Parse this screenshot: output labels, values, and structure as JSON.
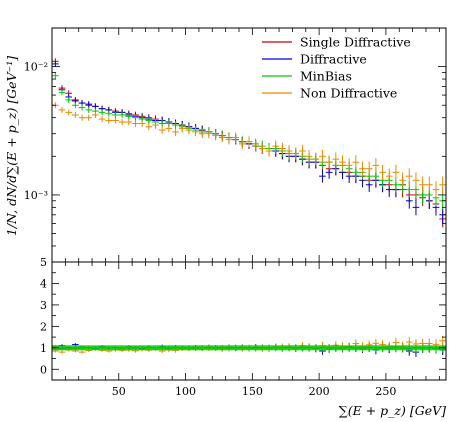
{
  "chart_data": {
    "type": "scatter",
    "xlabel": "∑(E + p_z) [GeV]",
    "ylabel": "1/N, dN/d∑(E + p_z) [GeV⁻¹]",
    "xlim": [
      0,
      295
    ],
    "ylim": [
      0.0003,
      0.02
    ],
    "yscale": "log",
    "ylim_ratio": [
      -0.5,
      5
    ],
    "bin_width": 5,
    "grid": false,
    "legend_position": "top-right",
    "x_ticks": [
      50,
      100,
      150,
      200,
      250
    ],
    "y_ticks": [
      {
        "value": 0.01,
        "label": "10⁻²"
      },
      {
        "value": 0.001,
        "label": "10⁻³"
      }
    ],
    "ratio_ticks": [
      0,
      1,
      2,
      3,
      4,
      5
    ],
    "x": [
      2.5,
      7.5,
      12.5,
      17.5,
      22.5,
      27.5,
      32.5,
      37.5,
      42.5,
      47.5,
      52.5,
      57.5,
      62.5,
      67.5,
      72.5,
      77.5,
      82.5,
      87.5,
      92.5,
      97.5,
      102.5,
      107.5,
      112.5,
      117.5,
      122.5,
      127.5,
      132.5,
      137.5,
      142.5,
      147.5,
      152.5,
      157.5,
      162.5,
      167.5,
      172.5,
      177.5,
      182.5,
      187.5,
      192.5,
      197.5,
      202.5,
      207.5,
      212.5,
      217.5,
      222.5,
      227.5,
      232.5,
      237.5,
      242.5,
      247.5,
      252.5,
      257.5,
      262.5,
      267.5,
      272.5,
      277.5,
      282.5,
      287.5,
      292.5
    ],
    "series": [
      {
        "name": "Single Diffractive",
        "color": "#cc0000",
        "values": [
          0.011,
          0.0068,
          0.0062,
          0.0055,
          0.0052,
          0.005,
          0.0049,
          0.0047,
          0.0046,
          0.0045,
          0.0044,
          0.0043,
          0.0042,
          0.0041,
          0.004,
          0.0039,
          0.0038,
          0.0037,
          0.0036,
          0.0035,
          0.0034,
          0.0033,
          0.0032,
          0.0031,
          0.003,
          0.0029,
          0.0028,
          0.0027,
          0.0026,
          0.0025,
          0.0024,
          0.0023,
          0.0022,
          0.0022,
          0.0021,
          0.002,
          0.002,
          0.0019,
          0.0018,
          0.0018,
          0.0017,
          0.0016,
          0.0016,
          0.0015,
          0.0015,
          0.0014,
          0.0014,
          0.0013,
          0.0013,
          0.0012,
          0.0012,
          0.0011,
          0.0011,
          0.001,
          0.001,
          0.00095,
          0.0009,
          0.00085,
          0.00065
        ],
        "ratio": [
          1.0,
          0.95,
          1.02,
          0.98,
          1.03,
          1.0,
          0.97,
          1.02,
          0.99,
          1.01,
          0.98,
          1.03,
          1.0,
          0.97,
          1.02,
          0.99,
          1.01,
          0.98,
          1.02,
          1.0,
          0.99,
          1.01,
          0.98,
          1.02,
          1.0,
          0.97,
          1.02,
          0.99,
          1.01,
          0.98,
          1.02,
          1.0,
          0.97,
          1.03,
          0.99,
          1.01,
          0.98,
          1.02,
          1.0,
          0.97,
          1.02,
          0.99,
          1.01,
          0.98,
          1.03,
          1.0,
          0.96,
          1.02,
          0.99,
          1.01,
          0.97,
          1.03,
          1.0,
          0.96,
          1.02,
          0.99,
          1.01,
          0.97,
          0.9
        ]
      },
      {
        "name": "Diffractive",
        "color": "#0000dd",
        "values": [
          0.0105,
          0.0066,
          0.0058,
          0.0054,
          0.0052,
          0.0051,
          0.0049,
          0.0047,
          0.0046,
          0.0044,
          0.0044,
          0.0042,
          0.0041,
          0.004,
          0.0039,
          0.0038,
          0.0038,
          0.0037,
          0.0036,
          0.0035,
          0.0034,
          0.0033,
          0.0032,
          0.0031,
          0.003,
          0.0029,
          0.0028,
          0.0027,
          0.0026,
          0.0025,
          0.0024,
          0.0023,
          0.0023,
          0.0022,
          0.0021,
          0.002,
          0.002,
          0.0019,
          0.0018,
          0.0018,
          0.0014,
          0.0015,
          0.0016,
          0.0015,
          0.0014,
          0.0014,
          0.0013,
          0.0012,
          0.0013,
          0.0012,
          0.0011,
          0.0011,
          0.0012,
          0.0009,
          0.0008,
          0.001,
          0.0009,
          0.0008,
          0.0007
        ],
        "ratio": [
          1.05,
          1.1,
          0.98,
          1.15,
          1.02,
          1.0,
          0.97,
          1.05,
          0.99,
          1.01,
          0.98,
          1.03,
          1.0,
          0.97,
          1.02,
          0.99,
          1.05,
          0.98,
          1.02,
          1.0,
          0.99,
          1.01,
          0.98,
          1.02,
          1.0,
          0.97,
          1.02,
          0.99,
          1.01,
          0.98,
          1.02,
          1.0,
          0.97,
          1.03,
          0.99,
          1.01,
          0.98,
          1.02,
          1.0,
          0.97,
          0.85,
          0.95,
          1.01,
          0.98,
          1.03,
          1.0,
          0.96,
          1.02,
          0.9,
          1.01,
          0.97,
          1.03,
          1.0,
          0.85,
          0.8,
          0.99,
          1.01,
          0.97,
          0.9
        ]
      },
      {
        "name": "MinBias",
        "color": "#00cc00",
        "values": [
          0.0085,
          0.0063,
          0.0055,
          0.005,
          0.0048,
          0.0046,
          0.0045,
          0.0044,
          0.0043,
          0.0042,
          0.0042,
          0.0041,
          0.004,
          0.0039,
          0.0038,
          0.0037,
          0.0036,
          0.0036,
          0.0035,
          0.0034,
          0.0033,
          0.0032,
          0.0031,
          0.0031,
          0.003,
          0.0029,
          0.0028,
          0.0027,
          0.0026,
          0.0026,
          0.0025,
          0.0024,
          0.0023,
          0.0023,
          0.0022,
          0.0021,
          0.0021,
          0.002,
          0.0019,
          0.0019,
          0.0018,
          0.0018,
          0.0017,
          0.0017,
          0.0016,
          0.0015,
          0.0015,
          0.0014,
          0.0014,
          0.0013,
          0.0013,
          0.0012,
          0.0012,
          0.0011,
          0.0011,
          0.001,
          0.001,
          0.00095,
          0.0009
        ],
        "ratio": [
          1.0,
          1.0,
          1.0,
          1.0,
          1.0,
          1.0,
          1.0,
          1.0,
          1.0,
          1.0,
          1.0,
          1.0,
          1.0,
          1.0,
          1.0,
          1.0,
          1.0,
          1.0,
          1.0,
          1.0,
          1.0,
          1.0,
          1.0,
          1.0,
          1.0,
          1.0,
          1.0,
          1.0,
          1.0,
          1.0,
          1.0,
          1.0,
          1.0,
          1.0,
          1.0,
          1.0,
          1.0,
          1.0,
          1.0,
          1.0,
          1.0,
          1.0,
          1.0,
          1.0,
          1.0,
          1.0,
          1.0,
          1.0,
          1.0,
          1.0,
          1.0,
          1.0,
          1.0,
          1.0,
          1.0,
          1.0,
          1.0,
          1.0,
          1.0
        ]
      },
      {
        "name": "Non Diffractive",
        "color": "#ee8800",
        "values": [
          0.005,
          0.0046,
          0.0044,
          0.0042,
          0.004,
          0.004,
          0.0042,
          0.0039,
          0.0038,
          0.0038,
          0.0037,
          0.0037,
          0.0036,
          0.0036,
          0.0034,
          0.0035,
          0.0032,
          0.0033,
          0.0031,
          0.0033,
          0.0032,
          0.0031,
          0.003,
          0.003,
          0.0029,
          0.0028,
          0.0027,
          0.0028,
          0.0025,
          0.0026,
          0.0024,
          0.0023,
          0.0022,
          0.0024,
          0.0023,
          0.0022,
          0.0021,
          0.0022,
          0.002,
          0.0019,
          0.002,
          0.0018,
          0.0019,
          0.0018,
          0.0017,
          0.0018,
          0.0016,
          0.0016,
          0.0017,
          0.0015,
          0.0014,
          0.0015,
          0.0013,
          0.0014,
          0.0013,
          0.0012,
          0.0012,
          0.0011,
          0.0012
        ],
        "ratio": [
          0.85,
          0.8,
          0.9,
          0.85,
          0.8,
          0.87,
          0.93,
          0.88,
          0.85,
          0.9,
          0.88,
          0.9,
          0.86,
          0.92,
          0.89,
          0.95,
          0.85,
          0.9,
          0.88,
          0.97,
          0.96,
          0.97,
          0.96,
          0.97,
          0.97,
          0.96,
          0.96,
          1.02,
          0.96,
          1.0,
          0.96,
          0.96,
          0.96,
          1.04,
          1.04,
          1.05,
          1.0,
          1.1,
          1.05,
          1.0,
          1.1,
          1.0,
          1.12,
          1.06,
          1.06,
          1.2,
          1.07,
          1.14,
          1.21,
          1.15,
          1.08,
          1.25,
          1.08,
          1.27,
          1.18,
          1.2,
          1.2,
          1.16,
          1.33
        ]
      }
    ]
  }
}
